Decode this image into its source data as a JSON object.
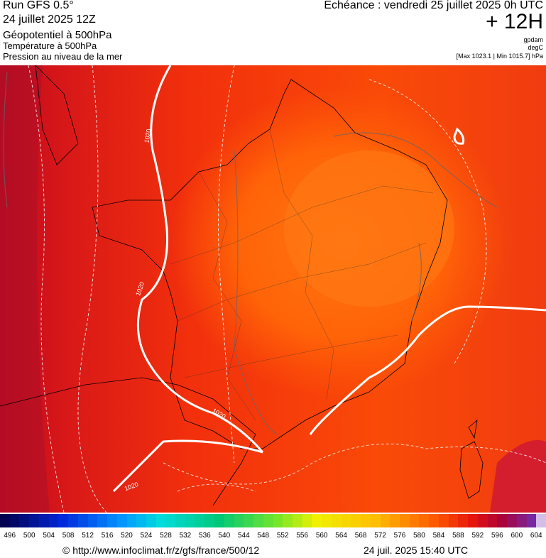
{
  "header": {
    "run": "Run GFS 0.5°",
    "date": "24 juillet 2025 12Z",
    "field": "Géopotentiel à 500hPa",
    "temperature": "Température à 500hPa",
    "pressure": "Pression au niveau de la mer",
    "echeance": "Echéance : vendredi 25 juillet 2025 0h UTC",
    "lead": "+ 12H",
    "unit_geo": "gpdam",
    "unit_temp": "degC",
    "pressure_range": "[Max 1023.1 | Min 1015.7] hPa"
  },
  "map": {
    "contour_labels": [
      "1020",
      "1020",
      "1020",
      "1020"
    ]
  },
  "colorbar": {
    "labels": [
      "496",
      "500",
      "504",
      "508",
      "512",
      "516",
      "520",
      "524",
      "528",
      "532",
      "536",
      "540",
      "544",
      "548",
      "552",
      "556",
      "560",
      "564",
      "568",
      "572",
      "576",
      "580",
      "584",
      "588",
      "592",
      "596",
      "600",
      "604"
    ]
  },
  "footer": {
    "url": "© http://www.infoclimat.fr/z/gfs/france/500/12",
    "timestamp": "24 juil. 2025 15:40 UTC"
  }
}
